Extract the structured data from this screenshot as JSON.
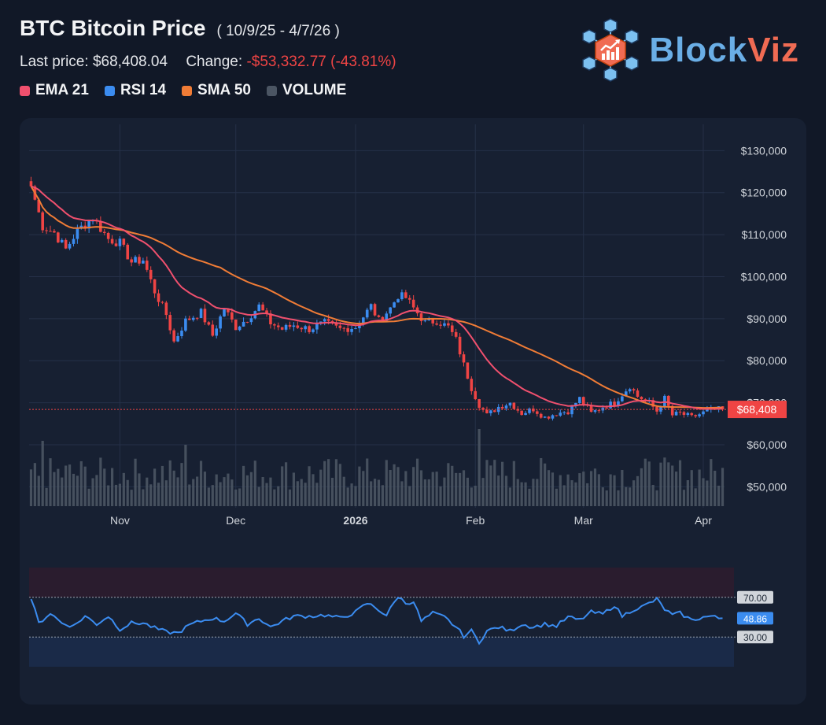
{
  "header": {
    "title": "BTC Bitcoin Price",
    "date_range": "( 10/9/25 - 4/7/26 )",
    "last_price_label": "Last price:",
    "last_price": "$68,408.04",
    "change_label": "Change:",
    "change_value": "-$53,332.77 (-43.81%)"
  },
  "legend": [
    {
      "label": "EMA 21",
      "color": "#f0506e"
    },
    {
      "label": "RSI 14",
      "color": "#3b8cf0"
    },
    {
      "label": "SMA 50",
      "color": "#f07c36"
    },
    {
      "label": "VOLUME",
      "color": "#4b5563"
    }
  ],
  "logo": {
    "text_a": "Block",
    "text_b": "Viz",
    "color_a": "#6aaee6",
    "color_b": "#f06b53",
    "icon": "blockchain-chart-icon"
  },
  "chart_data": {
    "type": "candlestick",
    "y_axis": {
      "ticks": [
        130000,
        120000,
        110000,
        100000,
        90000,
        80000,
        70000,
        60000,
        50000
      ],
      "tick_labels": [
        "$130,000",
        "$120,000",
        "$110,000",
        "$100,000",
        "$90,000",
        "$80,000",
        "$70,000",
        "$60,000",
        "$50,000"
      ],
      "range": [
        45000,
        134000
      ]
    },
    "x_axis": {
      "labels": [
        "Nov",
        "Dec",
        "2026",
        "Feb",
        "Mar",
        "Apr"
      ],
      "label_days": [
        23,
        53,
        84,
        115,
        143,
        174
      ]
    },
    "last_price_tag": "$68,408",
    "last_price_value": 68408,
    "close_anchors": [
      [
        0,
        121500
      ],
      [
        3,
        112000
      ],
      [
        6,
        110500
      ],
      [
        9,
        106500
      ],
      [
        12,
        111000
      ],
      [
        16,
        114000
      ],
      [
        20,
        109000
      ],
      [
        23,
        108000
      ],
      [
        26,
        103500
      ],
      [
        29,
        104000
      ],
      [
        32,
        96500
      ],
      [
        35,
        91000
      ],
      [
        37,
        84500
      ],
      [
        40,
        89500
      ],
      [
        44,
        91500
      ],
      [
        47,
        86000
      ],
      [
        50,
        92500
      ],
      [
        53,
        88000
      ],
      [
        56,
        90000
      ],
      [
        59,
        93000
      ],
      [
        62,
        89000
      ],
      [
        65,
        87500
      ],
      [
        68,
        88500
      ],
      [
        72,
        87500
      ],
      [
        76,
        89000
      ],
      [
        80,
        87500
      ],
      [
        84,
        88000
      ],
      [
        86,
        90500
      ],
      [
        88,
        93000
      ],
      [
        90,
        89500
      ],
      [
        93,
        92500
      ],
      [
        95,
        95500
      ],
      [
        97,
        95000
      ],
      [
        99,
        92500
      ],
      [
        102,
        89000
      ],
      [
        105,
        89500
      ],
      [
        108,
        88000
      ],
      [
        110,
        85000
      ],
      [
        112,
        79000
      ],
      [
        114,
        73500
      ],
      [
        116,
        69500
      ],
      [
        118,
        67000
      ],
      [
        121,
        69000
      ],
      [
        124,
        70000
      ],
      [
        127,
        67500
      ],
      [
        130,
        68500
      ],
      [
        133,
        66500
      ],
      [
        136,
        67500
      ],
      [
        139,
        68000
      ],
      [
        142,
        71000
      ],
      [
        145,
        67500
      ],
      [
        148,
        69000
      ],
      [
        151,
        70000
      ],
      [
        153,
        72000
      ],
      [
        155,
        74000
      ],
      [
        157,
        71500
      ],
      [
        160,
        70000
      ],
      [
        162,
        68000
      ],
      [
        164,
        71000
      ],
      [
        166,
        67000
      ],
      [
        168,
        67500
      ],
      [
        171,
        66500
      ],
      [
        175,
        68000
      ],
      [
        178,
        68408
      ]
    ],
    "volume_spikes": {
      "3": 83,
      "40": 78,
      "116": 98
    },
    "rsi": {
      "label": "RSI 14",
      "levels": [
        70,
        30
      ],
      "level_labels": [
        "70.00",
        "30.00"
      ],
      "current_label": "48.86",
      "current": 48.86,
      "anchors": [
        [
          0,
          69
        ],
        [
          2,
          44
        ],
        [
          5,
          54
        ],
        [
          8,
          44
        ],
        [
          11,
          41
        ],
        [
          14,
          51
        ],
        [
          17,
          43
        ],
        [
          20,
          51
        ],
        [
          23,
          38
        ],
        [
          26,
          44
        ],
        [
          29,
          44
        ],
        [
          32,
          39
        ],
        [
          35,
          35
        ],
        [
          38,
          34
        ],
        [
          41,
          42
        ],
        [
          44,
          46
        ],
        [
          47,
          49
        ],
        [
          50,
          46
        ],
        [
          53,
          54
        ],
        [
          56,
          43
        ],
        [
          59,
          49
        ],
        [
          62,
          40
        ],
        [
          65,
          46
        ],
        [
          68,
          51
        ],
        [
          72,
          51
        ],
        [
          76,
          52
        ],
        [
          80,
          49
        ],
        [
          84,
          55
        ],
        [
          87,
          64
        ],
        [
          89,
          60
        ],
        [
          92,
          52
        ],
        [
          95,
          71
        ],
        [
          97,
          64
        ],
        [
          99,
          66
        ],
        [
          101,
          46
        ],
        [
          104,
          54
        ],
        [
          107,
          50
        ],
        [
          110,
          40
        ],
        [
          112,
          31
        ],
        [
          114,
          36
        ],
        [
          116,
          25
        ],
        [
          118,
          36
        ],
        [
          121,
          40
        ],
        [
          124,
          36
        ],
        [
          127,
          43
        ],
        [
          130,
          40
        ],
        [
          133,
          43
        ],
        [
          136,
          41
        ],
        [
          139,
          50
        ],
        [
          142,
          47
        ],
        [
          145,
          55
        ],
        [
          148,
          53
        ],
        [
          151,
          62
        ],
        [
          153,
          51
        ],
        [
          156,
          58
        ],
        [
          158,
          60
        ],
        [
          160,
          64
        ],
        [
          162,
          68
        ],
        [
          164,
          58
        ],
        [
          166,
          52
        ],
        [
          168,
          54
        ],
        [
          171,
          47
        ],
        [
          174,
          50
        ],
        [
          176,
          51
        ],
        [
          178,
          48.86
        ]
      ]
    },
    "series": [
      {
        "name": "EMA 21",
        "color": "#f0506e"
      },
      {
        "name": "SMA 50",
        "color": "#f07c36"
      },
      {
        "name": "RSI 14",
        "color": "#3b8cf0"
      },
      {
        "name": "VOLUME",
        "color": "#4b5563"
      }
    ],
    "candle_colors": {
      "up": "#3b8cf0",
      "down": "#ef4444"
    },
    "days": 180
  }
}
